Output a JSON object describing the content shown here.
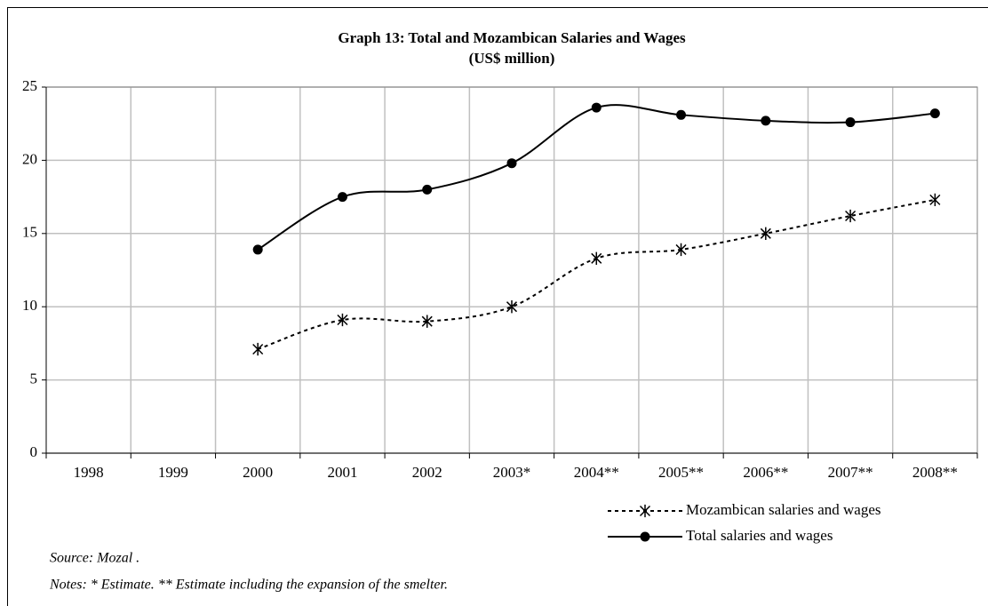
{
  "chart_data": {
    "type": "line",
    "title": "Graph 13: Total and Mozambican Salaries and Wages",
    "subtitle": "(US$ million)",
    "categories": [
      "1998",
      "1999",
      "2000",
      "2001",
      "2002",
      "2003*",
      "2004**",
      "2005**",
      "2006**",
      "2007**",
      "2008**"
    ],
    "series": [
      {
        "name": "Mozambican salaries and wages",
        "color": "#000000",
        "values": [
          null,
          null,
          7.1,
          9.1,
          9.0,
          10.0,
          13.3,
          13.9,
          15.0,
          16.2,
          17.3
        ]
      },
      {
        "name": "Total salaries and wages",
        "color": "#000000",
        "values": [
          null,
          null,
          13.9,
          17.5,
          18.0,
          19.8,
          23.6,
          23.1,
          22.7,
          22.6,
          23.2
        ]
      }
    ],
    "ylim": [
      0,
      25
    ],
    "yticks": [
      0,
      5,
      10,
      15,
      20,
      25
    ],
    "grid": true,
    "source": "Source: Mozal .",
    "notes": "Notes: * Estimate. ** Estimate including the expansion of the smelter."
  }
}
